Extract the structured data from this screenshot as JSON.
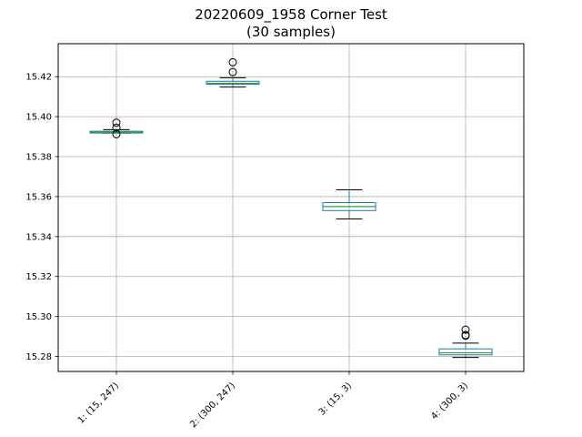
{
  "chart_data": {
    "type": "box",
    "title": "20220609_1958 Corner Test",
    "subtitle": "(30 samples)",
    "xlabel": "",
    "ylabel": "",
    "categories": [
      "1: (15, 247)",
      "2: (300, 247)",
      "3: (15, 3)",
      "4: (300, 3)"
    ],
    "ylim": [
      15.2725,
      15.4365
    ],
    "yticks": [
      15.28,
      15.3,
      15.32,
      15.34,
      15.36,
      15.38,
      15.4,
      15.42
    ],
    "ytick_labels": [
      "15.28",
      "15.30",
      "15.32",
      "15.34",
      "15.36",
      "15.38",
      "15.40",
      "15.42"
    ],
    "grid": true,
    "boxes": [
      {
        "whisker_low": 15.3918,
        "q1": 15.3918,
        "median": 15.3922,
        "q3": 15.3927,
        "whisker_high": 15.3935,
        "outliers": [
          15.397,
          15.3945,
          15.3912
        ]
      },
      {
        "whisker_low": 15.4148,
        "q1": 15.4162,
        "median": 15.4167,
        "q3": 15.4177,
        "whisker_high": 15.4195,
        "outliers": [
          15.4223,
          15.4272
        ]
      },
      {
        "whisker_low": 15.3488,
        "q1": 15.353,
        "median": 15.355,
        "q3": 15.357,
        "whisker_high": 15.3634,
        "outliers": []
      },
      {
        "whisker_low": 15.2795,
        "q1": 15.2808,
        "median": 15.2818,
        "q3": 15.2838,
        "whisker_high": 15.2867,
        "outliers": [
          15.2904,
          15.2934,
          15.2907
        ]
      }
    ],
    "colors": {
      "box": "#1f77b4",
      "median": "#2ca02c",
      "whisker": "#000000",
      "grid": "#b0b0b0"
    }
  }
}
